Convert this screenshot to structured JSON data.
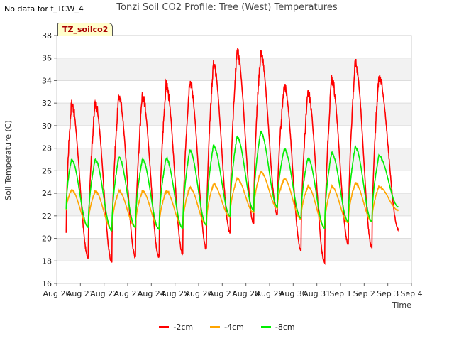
{
  "header": {
    "nodata": "No data for f_TCW_4",
    "title": "Tonzi Soil CO2 Profile: Tree (West) Temperatures",
    "badge": "TZ_soilco2"
  },
  "chart_data": {
    "type": "line",
    "title": "Tonzi Soil CO2 Profile: Tree (West) Temperatures",
    "xlabel": "Time",
    "ylabel": "Soil Temperature (C)",
    "ylim": [
      16,
      38
    ],
    "yticks": [
      16,
      18,
      20,
      22,
      24,
      26,
      28,
      30,
      32,
      34,
      36,
      38
    ],
    "xticks": [
      "Aug 20",
      "Aug 21",
      "Aug 22",
      "Aug 23",
      "Aug 24",
      "Aug 25",
      "Aug 26",
      "Aug 27",
      "Aug 28",
      "Aug 29",
      "Aug 30",
      "Aug 31",
      "Sep 1",
      "Sep 2",
      "Sep 3",
      "Sep 4"
    ],
    "xlim_days": [
      0,
      15
    ],
    "grid": "horizontal bands",
    "legend_position": "bottom",
    "series": [
      {
        "name": "-2cm",
        "color": "#ff0000",
        "daily_min": [
          17.8,
          18.3,
          17.9,
          18.4,
          18.3,
          18.6,
          19.1,
          20.5,
          21.3,
          22.1,
          19.0,
          17.9,
          19.5,
          19.2
        ],
        "daily_max": [
          32.0,
          32.0,
          32.6,
          32.6,
          33.6,
          34.0,
          35.5,
          36.6,
          36.3,
          33.5,
          32.9,
          34.1,
          35.6,
          34.3
        ],
        "start": 20.4,
        "end": 20.8
      },
      {
        "name": "-4cm",
        "color": "#ffa500",
        "daily_min": [
          21.0,
          21.1,
          20.8,
          21.0,
          20.9,
          21.0,
          21.2,
          21.9,
          22.3,
          22.7,
          21.7,
          21.0,
          21.4,
          21.5
        ],
        "daily_max": [
          24.3,
          24.2,
          24.2,
          24.2,
          24.2,
          24.5,
          24.8,
          25.3,
          25.9,
          25.3,
          24.6,
          24.6,
          24.9,
          24.6
        ],
        "start": 22.5,
        "end": 22.5
      },
      {
        "name": "-8cm",
        "color": "#00ee00",
        "daily_min": [
          20.9,
          21.0,
          20.7,
          21.0,
          20.8,
          20.9,
          21.2,
          22.0,
          22.5,
          22.8,
          21.8,
          20.9,
          21.5,
          21.5
        ],
        "daily_max": [
          27.0,
          27.0,
          27.2,
          27.0,
          27.1,
          27.8,
          28.2,
          29.0,
          29.4,
          27.9,
          27.1,
          27.6,
          28.1,
          27.3
        ],
        "start": 22.6,
        "end": 22.8
      }
    ]
  },
  "legend": [
    {
      "label": "-2cm",
      "color": "#ff0000"
    },
    {
      "label": "-4cm",
      "color": "#ffa500"
    },
    {
      "label": "-8cm",
      "color": "#00ee00"
    }
  ]
}
